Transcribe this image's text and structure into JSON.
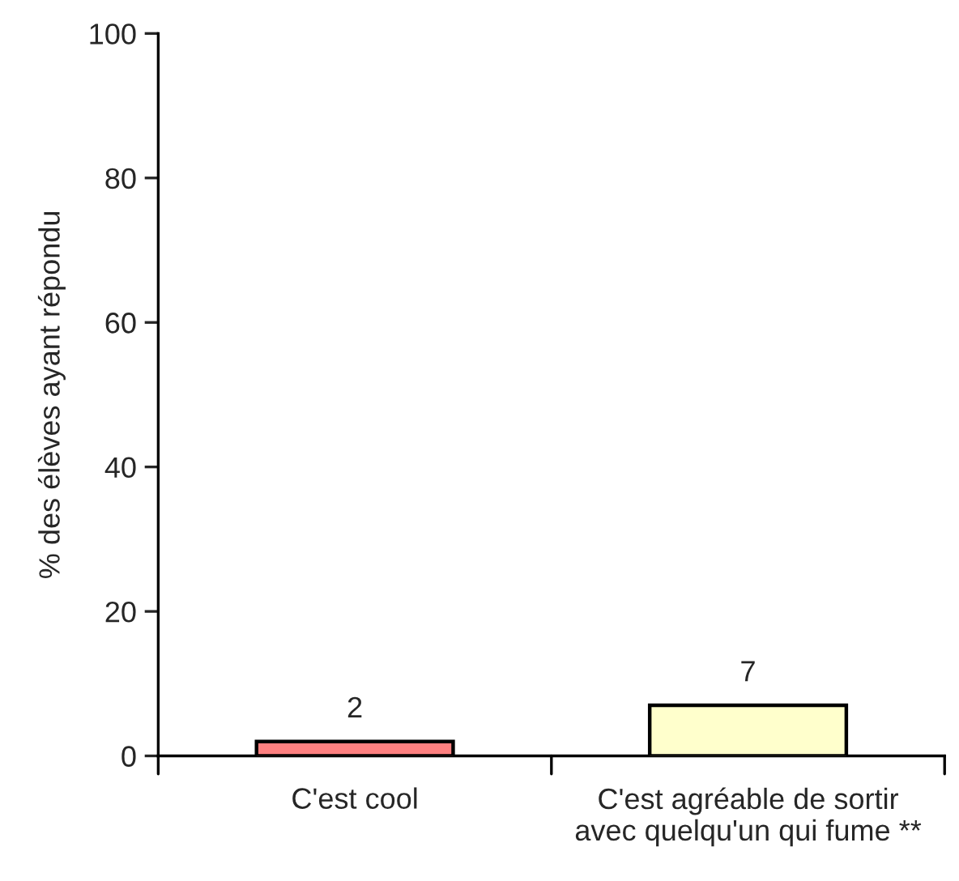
{
  "chart_data": {
    "type": "bar",
    "ylabel": "% des élèves ayant répondu",
    "categories": [
      "C'est cool",
      "C'est agréable de sortir\navec quelqu'un qui fume **"
    ],
    "values": [
      2,
      7
    ],
    "colors": [
      "#ff8080",
      "#ffffcc"
    ],
    "ylim": [
      0,
      100
    ],
    "yticks": [
      0,
      20,
      40,
      60,
      80,
      100
    ],
    "data_labels": true,
    "grid": false,
    "legend": false
  }
}
